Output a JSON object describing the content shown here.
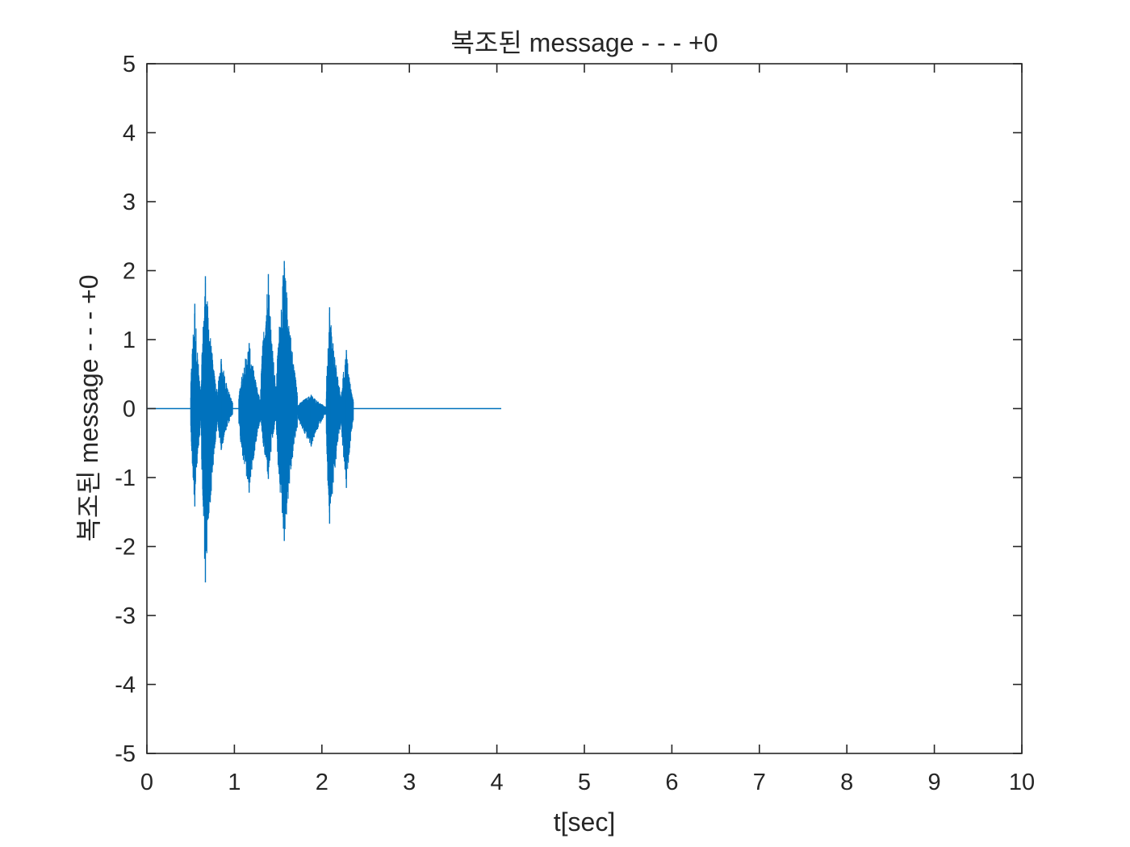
{
  "chart_data": {
    "type": "line",
    "title": "복조된 message - - - +0",
    "xlabel": "t[sec]",
    "ylabel": "복조된 message - - - +0",
    "xlim": [
      0,
      10
    ],
    "ylim": [
      -5,
      5
    ],
    "xticks": [
      0,
      1,
      2,
      3,
      4,
      5,
      6,
      7,
      8,
      9,
      10
    ],
    "yticks": [
      5,
      4,
      3,
      2,
      1,
      0,
      -1,
      -2,
      -3,
      -4,
      -5
    ],
    "grid": false,
    "series_color": "#0072BD",
    "series": [
      {
        "description_of_shape": "speech-like burst waveform",
        "signal_start": 0,
        "signal_end": 4.05,
        "bursts": [
          {
            "t_start": 0.5,
            "t_end": 0.62,
            "max": 1.52,
            "min": -1.42
          },
          {
            "t_start": 0.62,
            "t_end": 0.8,
            "max": 1.92,
            "min": -2.52
          },
          {
            "t_start": 0.8,
            "t_end": 0.98,
            "max": 0.72,
            "min": -0.6
          },
          {
            "t_start": 1.05,
            "t_end": 1.3,
            "max": 0.95,
            "min": -1.22
          },
          {
            "t_start": 1.3,
            "t_end": 1.48,
            "max": 1.95,
            "min": -1.02
          },
          {
            "t_start": 1.48,
            "t_end": 1.72,
            "max": 2.14,
            "min": -1.92
          },
          {
            "t_start": 1.72,
            "t_end": 2.05,
            "max": 0.2,
            "min": -0.55
          },
          {
            "t_start": 2.05,
            "t_end": 2.22,
            "max": 1.47,
            "min": -1.67
          },
          {
            "t_start": 2.22,
            "t_end": 2.36,
            "max": 0.85,
            "min": -1.15
          }
        ]
      }
    ]
  }
}
